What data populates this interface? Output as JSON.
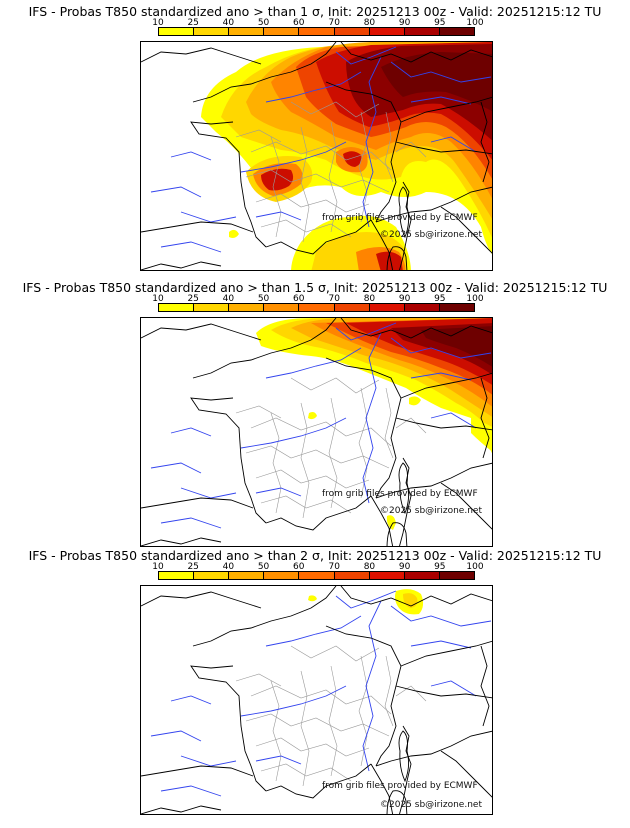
{
  "colorbar": {
    "ticks": [
      "10",
      "25",
      "40",
      "50",
      "60",
      "70",
      "80",
      "90",
      "95",
      "100"
    ],
    "colors": [
      "#ffff00",
      "#ffd700",
      "#ffb000",
      "#ff9000",
      "#ff6a00",
      "#ee4400",
      "#dd1100",
      "#aa0000",
      "#6e0000"
    ]
  },
  "panels": [
    {
      "title": "IFS - Probas T850  standardized ano > than 1 σ, Init: 20251213 00z - Valid: 20251215:12 TU",
      "source": "from grib files provided by ECMWF",
      "copyright": "©2025 sb@irizone.net",
      "level": 3
    },
    {
      "title": "IFS - Probas T850  standardized ano > than 1.5 σ, Init: 20251213 00z - Valid: 20251215:12 TU",
      "source": "from grib files provided by ECMWF",
      "copyright": "©2025 sb@irizone.net",
      "level": 2
    },
    {
      "title": "IFS - Probas T850  standardized ano > than 2 σ, Init: 20251213 00z - Valid: 20251215:12 TU",
      "source": "from grib files provided by ECMWF",
      "copyright": "©2025 sb@irizone.net",
      "level": 1
    }
  ]
}
